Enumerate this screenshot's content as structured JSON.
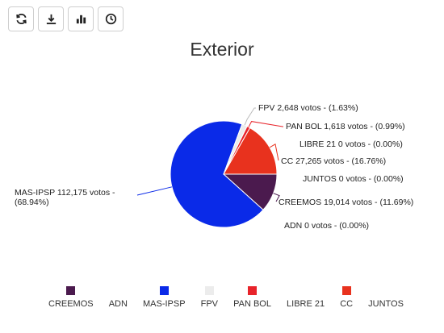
{
  "toolbar": {
    "buttons": [
      {
        "name": "refresh-button",
        "icon": "refresh-icon"
      },
      {
        "name": "download-button",
        "icon": "download-icon"
      },
      {
        "name": "bar-chart-button",
        "icon": "bar-chart-icon"
      },
      {
        "name": "history-button",
        "icon": "clock-icon"
      }
    ]
  },
  "chart_data": {
    "type": "pie",
    "title": "Exterior",
    "slices": [
      {
        "name": "CREEMOS",
        "votes": 19014,
        "percent": 11.69,
        "label": "CREEMOS 19,014 votos - (11.69%)",
        "color": "#4b1a4e"
      },
      {
        "name": "ADN",
        "votes": 0,
        "percent": 0.0,
        "label": "ADN 0 votos - (0.00%)",
        "color": "#5a3a1a"
      },
      {
        "name": "MAS-IPSP",
        "votes": 112175,
        "percent": 68.94,
        "label_line1": "MAS-IPSP 112,175 votos -",
        "label_line2": "(68.94%)",
        "color": "#0a2ae8"
      },
      {
        "name": "FPV",
        "votes": 2648,
        "percent": 1.63,
        "label": "FPV 2,648 votos - (1.63%)",
        "color": "#ececec"
      },
      {
        "name": "PAN BOL",
        "votes": 1618,
        "percent": 0.99,
        "label": "PAN BOL 1,618 votos - (0.99%)",
        "color": "#e8232a"
      },
      {
        "name": "LIBRE 21",
        "votes": 0,
        "percent": 0.0,
        "label": "LIBRE 21 0 votos - (0.00%)",
        "color": "#ffffff"
      },
      {
        "name": "CC",
        "votes": 27265,
        "percent": 16.76,
        "label": "CC 27,265 votos - (16.76%)",
        "color": "#e8321e"
      },
      {
        "name": "JUNTOS",
        "votes": 0,
        "percent": 0.0,
        "label": "JUNTOS 0 votos - (0.00%)",
        "color": "#ffffff"
      }
    ],
    "legend": {
      "placement": "bottom",
      "items": [
        {
          "label": "CREEMOS",
          "color": "#4b1a4e"
        },
        {
          "label": "ADN",
          "color": ""
        },
        {
          "label": "MAS-IPSP",
          "color": "#0a2ae8"
        },
        {
          "label": "FPV",
          "color": "#ececec"
        },
        {
          "label": "PAN BOL",
          "color": "#e8232a"
        },
        {
          "label": "LIBRE 21",
          "color": ""
        },
        {
          "label": "CC",
          "color": "#e8321e"
        },
        {
          "label": "JUNTOS",
          "color": ""
        }
      ]
    }
  }
}
